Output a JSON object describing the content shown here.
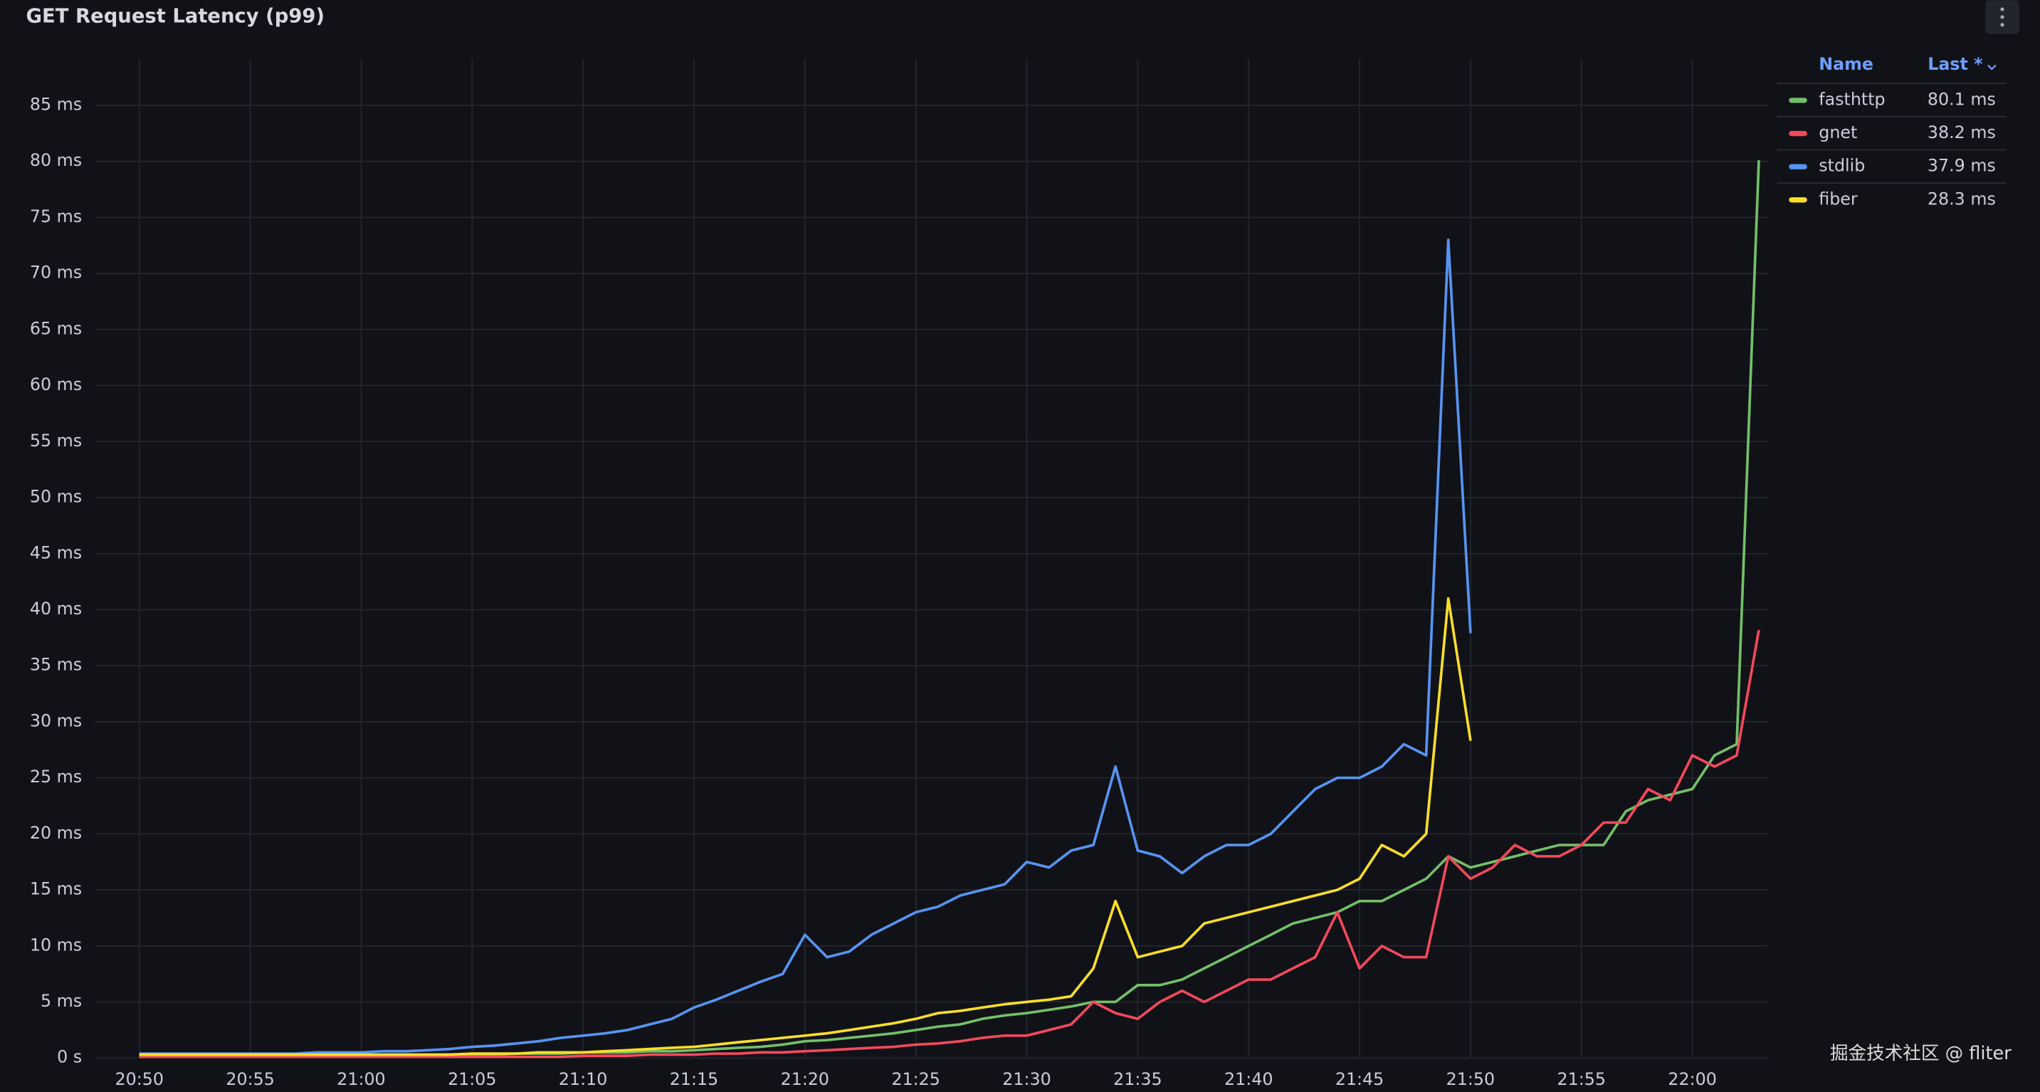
{
  "chart_data": {
    "type": "line",
    "title": "GET Request Latency (p99)",
    "x": [
      "20:50",
      "20:51",
      "20:52",
      "20:53",
      "20:54",
      "20:55",
      "20:56",
      "20:57",
      "20:58",
      "20:59",
      "21:00",
      "21:01",
      "21:02",
      "21:03",
      "21:04",
      "21:05",
      "21:06",
      "21:07",
      "21:08",
      "21:09",
      "21:10",
      "21:11",
      "21:12",
      "21:13",
      "21:14",
      "21:15",
      "21:16",
      "21:17",
      "21:18",
      "21:19",
      "21:20",
      "21:21",
      "21:22",
      "21:23",
      "21:24",
      "21:25",
      "21:26",
      "21:27",
      "21:28",
      "21:29",
      "21:30",
      "21:31",
      "21:32",
      "21:33",
      "21:34",
      "21:35",
      "21:36",
      "21:37",
      "21:38",
      "21:39",
      "21:40",
      "21:41",
      "21:42",
      "21:43",
      "21:44",
      "21:45",
      "21:46",
      "21:47",
      "21:48",
      "21:49",
      "21:50",
      "21:51",
      "21:52",
      "21:53",
      "21:54",
      "21:55",
      "21:56",
      "21:57",
      "21:58",
      "21:59",
      "22:00",
      "22:01",
      "22:02",
      "22:03"
    ],
    "series": [
      {
        "name": "fasthttp",
        "color": "#73bf69",
        "values": [
          0.2,
          0.2,
          0.2,
          0.2,
          0.2,
          0.2,
          0.2,
          0.2,
          0.2,
          0.2,
          0.2,
          0.2,
          0.2,
          0.3,
          0.3,
          0.3,
          0.3,
          0.4,
          0.4,
          0.4,
          0.5,
          0.5,
          0.5,
          0.6,
          0.6,
          0.7,
          0.8,
          0.9,
          1,
          1.2,
          1.5,
          1.6,
          1.8,
          2,
          2.2,
          2.5,
          2.8,
          3,
          3.5,
          3.8,
          4,
          4.3,
          4.6,
          5,
          5,
          6.5,
          6.5,
          7,
          8,
          9,
          10,
          11,
          12,
          12.5,
          13,
          14,
          14,
          15,
          16,
          18,
          17,
          17.5,
          18,
          18.5,
          19,
          19,
          19,
          22,
          23,
          23.5,
          24,
          27,
          28,
          80.1
        ]
      },
      {
        "name": "gnet",
        "color": "#f2495c",
        "values": [
          0.1,
          0.1,
          0.1,
          0.1,
          0.1,
          0.1,
          0.1,
          0.1,
          0.1,
          0.1,
          0.1,
          0.1,
          0.1,
          0.1,
          0.1,
          0.1,
          0.1,
          0.1,
          0.1,
          0.1,
          0.2,
          0.2,
          0.2,
          0.3,
          0.3,
          0.3,
          0.4,
          0.4,
          0.5,
          0.5,
          0.6,
          0.7,
          0.8,
          0.9,
          1,
          1.2,
          1.3,
          1.5,
          1.8,
          2,
          2,
          2.5,
          3,
          5,
          4,
          3.5,
          5,
          6,
          5,
          6,
          7,
          7,
          8,
          9,
          13,
          8,
          10,
          9,
          9,
          18,
          16,
          17,
          19,
          18,
          18,
          19,
          21,
          21,
          24,
          23,
          27,
          26,
          27,
          38.2
        ]
      },
      {
        "name": "stdlib",
        "color": "#5794f2",
        "values": [
          0.4,
          0.4,
          0.4,
          0.4,
          0.4,
          0.4,
          0.4,
          0.4,
          0.5,
          0.5,
          0.5,
          0.6,
          0.6,
          0.7,
          0.8,
          1,
          1.1,
          1.3,
          1.5,
          1.8,
          2,
          2.2,
          2.5,
          3,
          3.5,
          4.5,
          5.2,
          6,
          6.8,
          7.5,
          11,
          9,
          9.5,
          11,
          12,
          13,
          13.5,
          14.5,
          15,
          15.5,
          17.5,
          17,
          18.5,
          19,
          26,
          18.5,
          18,
          16.5,
          18,
          19,
          19,
          20,
          22,
          24,
          25,
          25,
          26,
          28,
          27,
          73,
          37.9,
          null,
          null,
          null,
          null,
          null,
          null,
          null,
          null,
          null,
          null,
          null,
          null,
          null
        ]
      },
      {
        "name": "fiber",
        "color": "#fade2a",
        "values": [
          0.3,
          0.3,
          0.3,
          0.3,
          0.3,
          0.3,
          0.3,
          0.3,
          0.3,
          0.3,
          0.3,
          0.3,
          0.3,
          0.3,
          0.3,
          0.4,
          0.4,
          0.4,
          0.5,
          0.5,
          0.5,
          0.6,
          0.7,
          0.8,
          0.9,
          1,
          1.2,
          1.4,
          1.6,
          1.8,
          2,
          2.2,
          2.5,
          2.8,
          3.1,
          3.5,
          4,
          4.2,
          4.5,
          4.8,
          5,
          5.2,
          5.5,
          8,
          14,
          9,
          9.5,
          10,
          12,
          12.5,
          13,
          13.5,
          14,
          14.5,
          15,
          16,
          19,
          18,
          20,
          41,
          28.3,
          null,
          null,
          null,
          null,
          null,
          null,
          null,
          null,
          null,
          null,
          null,
          null,
          null
        ]
      }
    ],
    "xlim": [
      "20:48",
      "22:04"
    ],
    "xticks": [
      "20:50",
      "20:55",
      "21:00",
      "21:05",
      "21:10",
      "21:15",
      "21:20",
      "21:25",
      "21:30",
      "21:35",
      "21:40",
      "21:45",
      "21:50",
      "21:55",
      "22:00"
    ],
    "ylim": [
      0,
      88
    ],
    "yticks": [
      {
        "value": 0,
        "label": "0 s"
      },
      {
        "value": 5,
        "label": "5 ms"
      },
      {
        "value": 10,
        "label": "10 ms"
      },
      {
        "value": 15,
        "label": "15 ms"
      },
      {
        "value": 20,
        "label": "20 ms"
      },
      {
        "value": 25,
        "label": "25 ms"
      },
      {
        "value": 30,
        "label": "30 ms"
      },
      {
        "value": 35,
        "label": "35 ms"
      },
      {
        "value": 40,
        "label": "40 ms"
      },
      {
        "value": 45,
        "label": "45 ms"
      },
      {
        "value": 50,
        "label": "50 ms"
      },
      {
        "value": 55,
        "label": "55 ms"
      },
      {
        "value": 60,
        "label": "60 ms"
      },
      {
        "value": 65,
        "label": "65 ms"
      },
      {
        "value": 70,
        "label": "70 ms"
      },
      {
        "value": 75,
        "label": "75 ms"
      },
      {
        "value": 80,
        "label": "80 ms"
      },
      {
        "value": 85,
        "label": "85 ms"
      }
    ],
    "grid": true,
    "legend": {
      "columns": [
        "Name",
        "Last *"
      ],
      "last": [
        "80.1 ms",
        "38.2 ms",
        "37.9 ms",
        "28.3 ms"
      ]
    }
  },
  "watermark": "掘金技术社区 @ fliter"
}
